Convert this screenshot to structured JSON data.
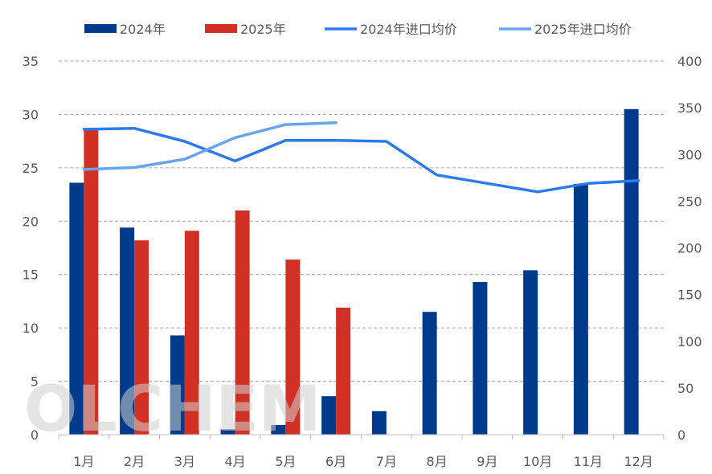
{
  "watermark": "OLCHEM",
  "colors": {
    "bar2024": "#003A8C",
    "bar2025": "#D13124",
    "line2024": "#2B7BEF",
    "line2025": "#6AA3F2",
    "grid": "#A6A6A6",
    "text": "#595959"
  },
  "chart_data": {
    "type": "bar",
    "categories": [
      "1月",
      "2月",
      "3月",
      "4月",
      "5月",
      "6月",
      "7月",
      "8月",
      "9月",
      "10月",
      "11月",
      "12月"
    ],
    "series": [
      {
        "name": "2024年",
        "type": "bar",
        "axis": "left",
        "values": [
          23.6,
          19.4,
          9.3,
          0.5,
          0.9,
          3.6,
          2.2,
          11.5,
          14.3,
          15.4,
          23.5,
          30.5
        ]
      },
      {
        "name": "2025年",
        "type": "bar",
        "axis": "left",
        "values": [
          28.7,
          18.2,
          19.1,
          21.0,
          16.4,
          11.9,
          null,
          null,
          null,
          null,
          null,
          null
        ]
      },
      {
        "name": "2024年进口均价",
        "type": "line",
        "axis": "right",
        "values": [
          327,
          328,
          314,
          293,
          315,
          315,
          314,
          278,
          269,
          260,
          269,
          272
        ]
      },
      {
        "name": "2025年进口均价",
        "type": "line",
        "axis": "right",
        "values": [
          284,
          286,
          295,
          318,
          332,
          334,
          null,
          null,
          null,
          null,
          null,
          null
        ]
      }
    ],
    "y_left": {
      "min": 0,
      "max": 35,
      "ticks": [
        0,
        5,
        10,
        15,
        20,
        25,
        30,
        35
      ]
    },
    "y_right": {
      "min": 0,
      "max": 400,
      "ticks": [
        0,
        50,
        100,
        150,
        200,
        250,
        300,
        350,
        400
      ]
    },
    "legend_position": "top",
    "grid": true
  }
}
